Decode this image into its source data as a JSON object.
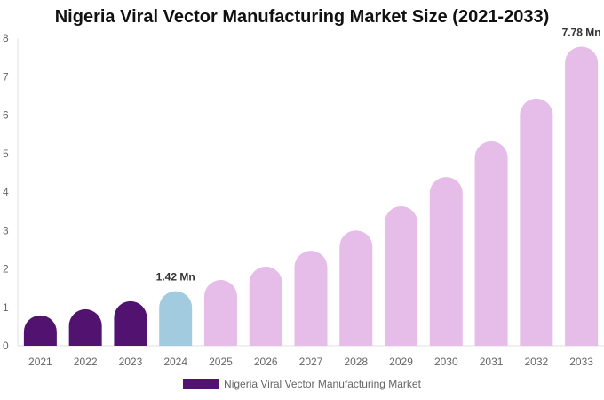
{
  "chart_data": {
    "type": "bar",
    "title": "Nigeria Viral Vector Manufacturing Market Size (2021-2033)",
    "categories": [
      "2021",
      "2022",
      "2023",
      "2024",
      "2025",
      "2026",
      "2027",
      "2028",
      "2029",
      "2030",
      "2031",
      "2032",
      "2033"
    ],
    "series": [
      {
        "name": "Nigeria Viral Vector Manufacturing Market",
        "values": [
          0.79,
          0.95,
          1.16,
          1.42,
          1.71,
          2.06,
          2.47,
          3.0,
          3.63,
          4.39,
          5.32,
          6.43,
          7.78
        ]
      }
    ],
    "ylim": [
      0,
      8
    ],
    "yticks": [
      "0",
      "1",
      "2",
      "3",
      "4",
      "5",
      "6",
      "7",
      "8"
    ],
    "data_labels": {
      "3": "1.42 Mn",
      "12": "7.78 Mn"
    },
    "colors": {
      "historical": "#521370",
      "current": "#a3cbe0",
      "forecast": "#e6bce8"
    },
    "grid": false,
    "legend": "bottom"
  }
}
